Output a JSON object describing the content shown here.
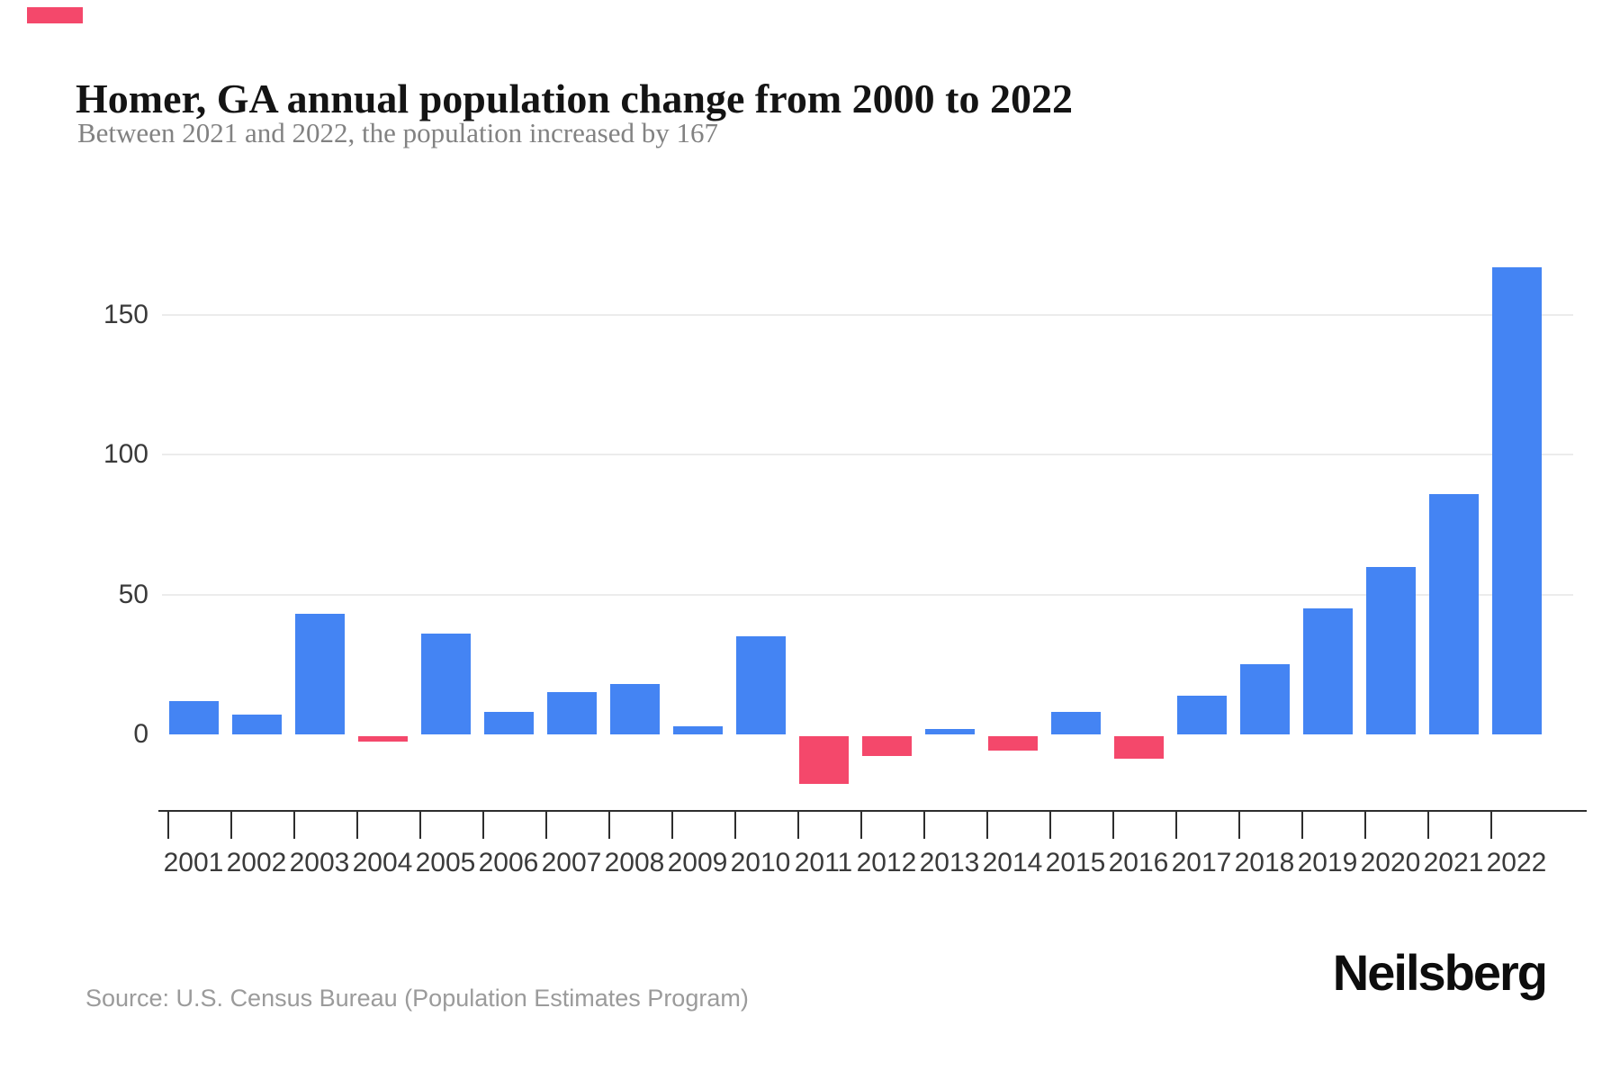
{
  "header": {
    "title": "Homer, GA annual population change from 2000 to 2022",
    "subtitle": "Between 2021 and 2022, the population increased by 167"
  },
  "colors": {
    "accent": "#f4486b",
    "bar_positive": "#4484f3",
    "bar_negative": "#f4486b",
    "gridline": "#ececec",
    "axis": "#2e2e2e"
  },
  "chart_data": {
    "type": "bar",
    "title": "Homer, GA annual population change from 2000 to 2022",
    "subtitle": "Between 2021 and 2022, the population increased by 167",
    "categories": [
      "2001",
      "2002",
      "2003",
      "2004",
      "2005",
      "2006",
      "2007",
      "2008",
      "2009",
      "2010",
      "2011",
      "2012",
      "2013",
      "2014",
      "2015",
      "2016",
      "2017",
      "2018",
      "2019",
      "2020",
      "2021",
      "2022"
    ],
    "values": [
      12,
      7,
      43,
      -2,
      36,
      8,
      15,
      18,
      3,
      35,
      -17,
      -7,
      2,
      -5,
      8,
      -8,
      14,
      25,
      45,
      60,
      86,
      167
    ],
    "xlabel": "",
    "ylabel": "",
    "yticks": [
      0,
      50,
      100,
      150
    ],
    "ylim": [
      -25,
      175
    ],
    "grid": "horizontal",
    "legend": "none",
    "positive_color": "#4484f3",
    "negative_color": "#f4486b"
  },
  "footer": {
    "source": "Source: U.S. Census Bureau (Population Estimates Program)",
    "brand": "Neilsberg"
  }
}
